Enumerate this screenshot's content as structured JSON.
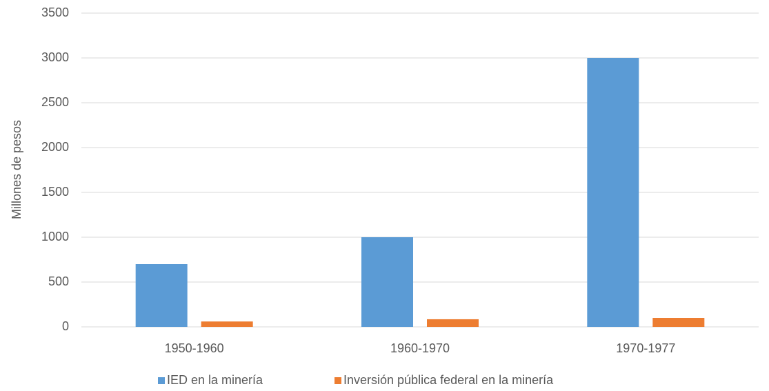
{
  "chart_data": {
    "type": "bar",
    "y_label": "Millones de pesos",
    "categories": [
      "1950-1960",
      "1960-1970",
      "1970-1977"
    ],
    "series": [
      {
        "name": "IED en la minería",
        "color": "#5b9bd5",
        "values": [
          700,
          1000,
          3000
        ]
      },
      {
        "name": "Inversión pública federal en la minería",
        "color": "#ed7d31",
        "values": [
          60,
          85,
          100
        ]
      }
    ],
    "ylim": [
      0,
      3500
    ],
    "yticks": [
      0,
      500,
      1000,
      1500,
      2000,
      2500,
      3000,
      3500
    ],
    "grid": true,
    "legend": "bottom"
  }
}
